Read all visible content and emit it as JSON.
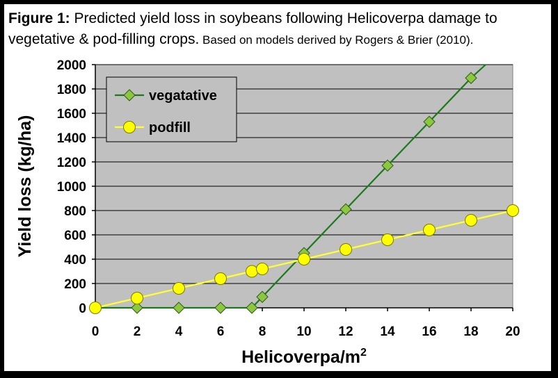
{
  "caption": {
    "figure_label": "Figure 1:",
    "line1_rest": " Predicted yield loss in  soybeans following Helicoverpa damage to",
    "line2_main": "vegetative & pod-filling crops.",
    "line2_small": " Based on models derived by Rogers & Brier (2010)."
  },
  "chart_data": {
    "type": "line",
    "xlabel": "Helicoverpa/m",
    "xlabel_superscript": "2",
    "ylabel": "Yield loss (kg/ha)",
    "xlim": [
      0,
      20
    ],
    "ylim": [
      0,
      2000
    ],
    "x_ticks": [
      0,
      2,
      4,
      6,
      8,
      10,
      12,
      14,
      16,
      18,
      20
    ],
    "y_ticks": [
      0,
      200,
      400,
      600,
      800,
      1000,
      1200,
      1400,
      1600,
      1800,
      2000
    ],
    "grid": "horizontal",
    "legend_position": "top-left",
    "plot_background": "#c0c0c0",
    "series": [
      {
        "name": "vegatative",
        "color": "#1a7a1a",
        "marker": "diamond",
        "marker_fill": "#8dc63f",
        "x": [
          0,
          2,
          4,
          6,
          7.5,
          8,
          10,
          12,
          14,
          16,
          18
        ],
        "y": [
          0,
          0,
          0,
          0,
          0,
          90,
          450,
          810,
          1170,
          1530,
          1890
        ],
        "line_extends_to": [
          18.7,
          2000
        ]
      },
      {
        "name": "podfill",
        "color": "#ffff33",
        "marker": "circle",
        "marker_fill": "#ffff00",
        "x": [
          0,
          2,
          4,
          6,
          7.5,
          8,
          10,
          12,
          14,
          16,
          18,
          20
        ],
        "y": [
          0,
          80,
          160,
          240,
          300,
          320,
          400,
          480,
          560,
          640,
          720,
          800
        ]
      }
    ]
  }
}
